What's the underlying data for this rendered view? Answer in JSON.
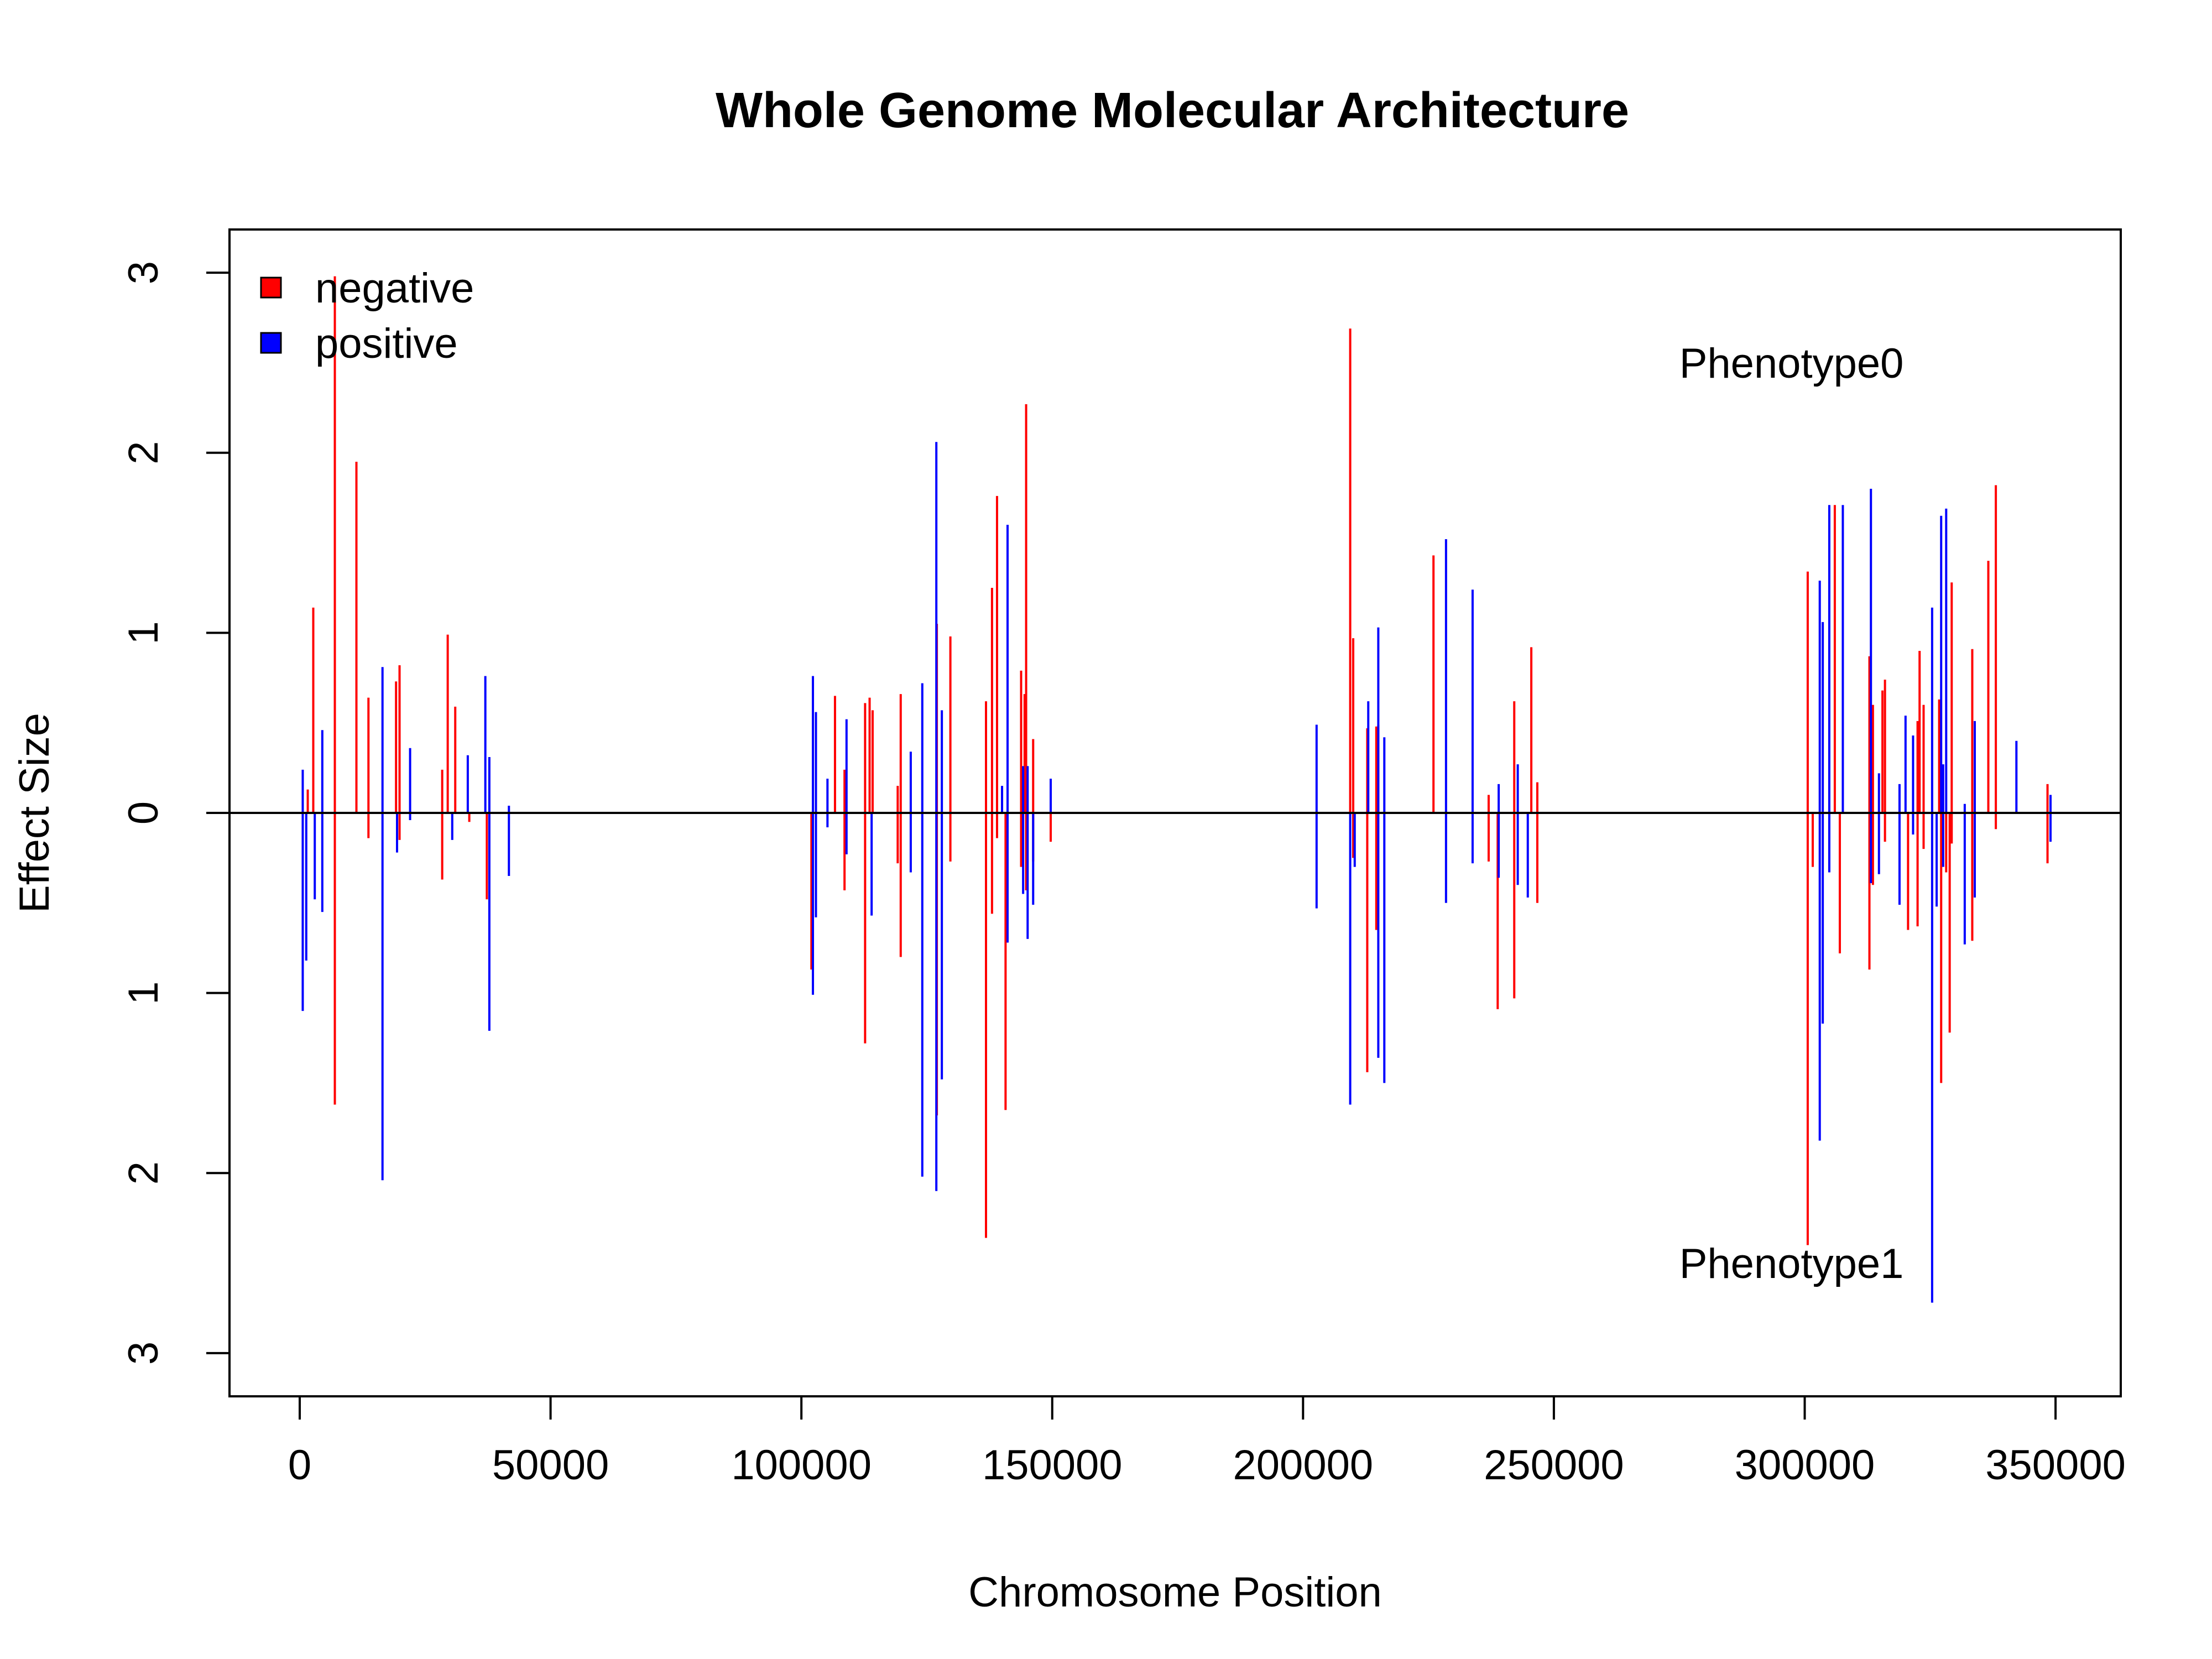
{
  "chart_data": {
    "type": "bar",
    "title": "Whole Genome Molecular Architecture",
    "xlabel": "Chromosome Position",
    "ylabel": "Effect Size",
    "xlim": [
      -14000,
      363000
    ],
    "ylim": [
      -3.24,
      3.24
    ],
    "x_ticks": [
      0,
      50000,
      100000,
      150000,
      200000,
      250000,
      300000,
      350000
    ],
    "y_ticks": [
      3,
      2,
      1,
      0,
      -1,
      -2,
      -3
    ],
    "y_tick_labels": [
      "3",
      "2",
      "1",
      "0",
      "1",
      "2",
      "3"
    ],
    "grid": false,
    "legend": {
      "position": "top-left",
      "entries": [
        {
          "label": "negative",
          "color": "#ff0000"
        },
        {
          "label": "positive",
          "color": "#0000ff"
        }
      ]
    },
    "annotations": [
      {
        "text": "Phenotype0",
        "x": 275000,
        "y": 2.5
      },
      {
        "text": "Phenotype1",
        "x": 275000,
        "y": -2.5
      }
    ],
    "series": [
      {
        "name": "negative",
        "color": "#ff0000",
        "points": [
          [
            1600,
            0.13
          ],
          [
            2700,
            1.14
          ],
          [
            7000,
            2.98
          ],
          [
            7000,
            -1.62
          ],
          [
            11300,
            1.95
          ],
          [
            13700,
            0.64
          ],
          [
            13700,
            -0.14
          ],
          [
            19200,
            0.73
          ],
          [
            19900,
            0.82
          ],
          [
            19900,
            -0.15
          ],
          [
            28400,
            0.24
          ],
          [
            28400,
            -0.37
          ],
          [
            29500,
            0.99
          ],
          [
            31000,
            0.59
          ],
          [
            33800,
            -0.05
          ],
          [
            37300,
            -0.48
          ],
          [
            102000,
            -0.87
          ],
          [
            106700,
            0.65
          ],
          [
            108600,
            0.24
          ],
          [
            108600,
            -0.43
          ],
          [
            112700,
            0.61
          ],
          [
            112700,
            -1.28
          ],
          [
            113600,
            0.64
          ],
          [
            114200,
            0.57
          ],
          [
            119200,
            0.15
          ],
          [
            119200,
            -0.28
          ],
          [
            119800,
            0.66
          ],
          [
            119800,
            -0.8
          ],
          [
            127000,
            1.05
          ],
          [
            127000,
            -1.68
          ],
          [
            129700,
            0.98
          ],
          [
            129700,
            -0.27
          ],
          [
            136800,
            0.62
          ],
          [
            136800,
            -2.36
          ],
          [
            138000,
            1.25
          ],
          [
            138000,
            -0.56
          ],
          [
            139000,
            1.76
          ],
          [
            139000,
            -0.14
          ],
          [
            140700,
            -1.65
          ],
          [
            143800,
            0.79
          ],
          [
            143800,
            -0.3
          ],
          [
            144500,
            0.66
          ],
          [
            144800,
            2.27
          ],
          [
            144800,
            -0.43
          ],
          [
            146200,
            0.41
          ],
          [
            146200,
            -0.27
          ],
          [
            149700,
            -0.16
          ],
          [
            209400,
            2.69
          ],
          [
            210000,
            0.97
          ],
          [
            210000,
            -0.25
          ],
          [
            212800,
            0.47
          ],
          [
            212800,
            -1.44
          ],
          [
            214600,
            0.48
          ],
          [
            214600,
            -0.65
          ],
          [
            215000,
            0.49
          ],
          [
            226000,
            1.43
          ],
          [
            237000,
            0.1
          ],
          [
            237000,
            -0.27
          ],
          [
            238800,
            -1.09
          ],
          [
            242100,
            0.62
          ],
          [
            242100,
            -1.03
          ],
          [
            245500,
            0.92
          ],
          [
            246700,
            0.17
          ],
          [
            246700,
            -0.5
          ],
          [
            300600,
            1.34
          ],
          [
            300600,
            -2.4
          ],
          [
            301600,
            -0.3
          ],
          [
            307000,
            -0.78
          ],
          [
            312900,
            0.87
          ],
          [
            312900,
            -0.87
          ],
          [
            313600,
            0.6
          ],
          [
            313600,
            -0.4
          ],
          [
            315500,
            0.68
          ],
          [
            316000,
            0.74
          ],
          [
            316000,
            -0.16
          ],
          [
            320600,
            -0.65
          ],
          [
            322500,
            0.51
          ],
          [
            322500,
            -0.63
          ],
          [
            323700,
            0.6
          ],
          [
            323700,
            -0.2
          ],
          [
            326800,
            0.63
          ],
          [
            327200,
            -1.5
          ],
          [
            328200,
            -0.33
          ],
          [
            328900,
            -1.22
          ],
          [
            329300,
            1.28
          ],
          [
            329300,
            -0.17
          ],
          [
            333400,
            0.91
          ],
          [
            333400,
            -0.71
          ],
          [
            336600,
            1.4
          ],
          [
            338100,
            1.82
          ],
          [
            338100,
            -0.09
          ],
          [
            348400,
            0.16
          ],
          [
            348400,
            -0.28
          ],
          [
            306000,
            1.71
          ],
          [
            322900,
            0.9
          ]
        ]
      },
      {
        "name": "positive",
        "color": "#0000ff",
        "points": [
          [
            600,
            0.24
          ],
          [
            600,
            -1.1
          ],
          [
            1300,
            -0.82
          ],
          [
            3000,
            -0.48
          ],
          [
            4500,
            0.46
          ],
          [
            4500,
            -0.55
          ],
          [
            16500,
            0.81
          ],
          [
            16500,
            -2.04
          ],
          [
            19400,
            -0.22
          ],
          [
            22000,
            0.36
          ],
          [
            22000,
            -0.04
          ],
          [
            30400,
            -0.15
          ],
          [
            33500,
            0.32
          ],
          [
            37000,
            0.76
          ],
          [
            37800,
            0.31
          ],
          [
            37800,
            -1.21
          ],
          [
            41700,
            0.04
          ],
          [
            41700,
            -0.35
          ],
          [
            102300,
            0.76
          ],
          [
            102300,
            -1.01
          ],
          [
            102900,
            0.56
          ],
          [
            102900,
            -0.58
          ],
          [
            105200,
            0.19
          ],
          [
            105200,
            -0.08
          ],
          [
            109000,
            0.52
          ],
          [
            109000,
            -0.23
          ],
          [
            114000,
            -0.57
          ],
          [
            121800,
            0.34
          ],
          [
            121800,
            -0.33
          ],
          [
            124100,
            0.72
          ],
          [
            124100,
            -2.02
          ],
          [
            126900,
            2.06
          ],
          [
            126900,
            -2.1
          ],
          [
            128000,
            0.57
          ],
          [
            128000,
            -1.48
          ],
          [
            140000,
            0.15
          ],
          [
            141100,
            1.6
          ],
          [
            141100,
            -0.72
          ],
          [
            144200,
            0.26
          ],
          [
            144200,
            -0.45
          ],
          [
            145100,
            0.26
          ],
          [
            145100,
            -0.7
          ],
          [
            146200,
            -0.51
          ],
          [
            149700,
            0.19
          ],
          [
            202700,
            0.49
          ],
          [
            202700,
            -0.53
          ],
          [
            209400,
            -1.62
          ],
          [
            210300,
            -0.3
          ],
          [
            213000,
            0.62
          ],
          [
            215000,
            1.03
          ],
          [
            215000,
            -1.36
          ],
          [
            216200,
            0.42
          ],
          [
            216200,
            -1.5
          ],
          [
            228500,
            1.52
          ],
          [
            228500,
            -0.5
          ],
          [
            233800,
            1.24
          ],
          [
            233800,
            -0.28
          ],
          [
            239000,
            0.16
          ],
          [
            239000,
            -0.36
          ],
          [
            242800,
            0.27
          ],
          [
            242800,
            -0.4
          ],
          [
            244800,
            -0.47
          ],
          [
            303000,
            1.29
          ],
          [
            303000,
            -1.82
          ],
          [
            303600,
            1.06
          ],
          [
            303600,
            -1.17
          ],
          [
            304900,
            1.71
          ],
          [
            304900,
            -0.33
          ],
          [
            307600,
            1.71
          ],
          [
            313200,
            1.8
          ],
          [
            313200,
            -0.39
          ],
          [
            314800,
            0.22
          ],
          [
            314800,
            -0.34
          ],
          [
            318900,
            0.16
          ],
          [
            318900,
            -0.51
          ],
          [
            320100,
            0.54
          ],
          [
            321600,
            0.43
          ],
          [
            321600,
            -0.12
          ],
          [
            325400,
            1.14
          ],
          [
            325400,
            -2.72
          ],
          [
            326300,
            -0.52
          ],
          [
            327200,
            1.65
          ],
          [
            327600,
            0.27
          ],
          [
            327600,
            -0.3
          ],
          [
            328200,
            1.69
          ],
          [
            331900,
            0.05
          ],
          [
            331900,
            -0.73
          ],
          [
            333900,
            0.51
          ],
          [
            333900,
            -0.47
          ],
          [
            342200,
            0.4
          ],
          [
            349000,
            0.1
          ],
          [
            349000,
            -0.16
          ]
        ]
      }
    ]
  }
}
